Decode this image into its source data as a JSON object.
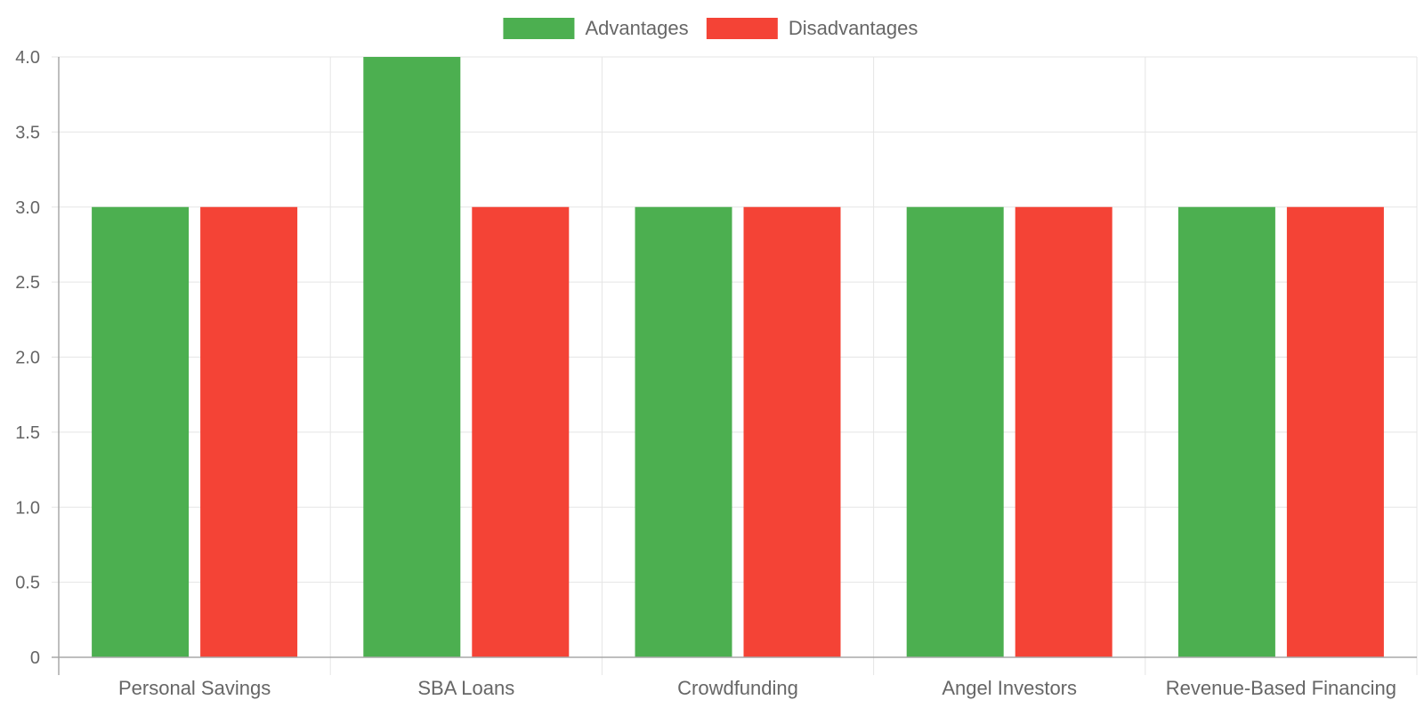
{
  "chart_data": {
    "type": "bar",
    "categories": [
      "Personal Savings",
      "SBA Loans",
      "Crowdfunding",
      "Angel Investors",
      "Revenue-Based Financing"
    ],
    "series": [
      {
        "name": "Advantages",
        "values": [
          3,
          4,
          3,
          3,
          3
        ],
        "color": "#4caf50"
      },
      {
        "name": "Disadvantages",
        "values": [
          3,
          3,
          3,
          3,
          3
        ],
        "color": "#f44336"
      }
    ],
    "ylim": [
      0,
      4
    ],
    "yticks": [
      "0",
      "0.5",
      "1.0",
      "1.5",
      "2.0",
      "2.5",
      "3.0",
      "3.5",
      "4.0"
    ],
    "legend_position": "top-center",
    "grid": true,
    "colors": {
      "grid": "#e5e5e5",
      "axis": "#a8a8a8",
      "text": "#666666"
    }
  }
}
